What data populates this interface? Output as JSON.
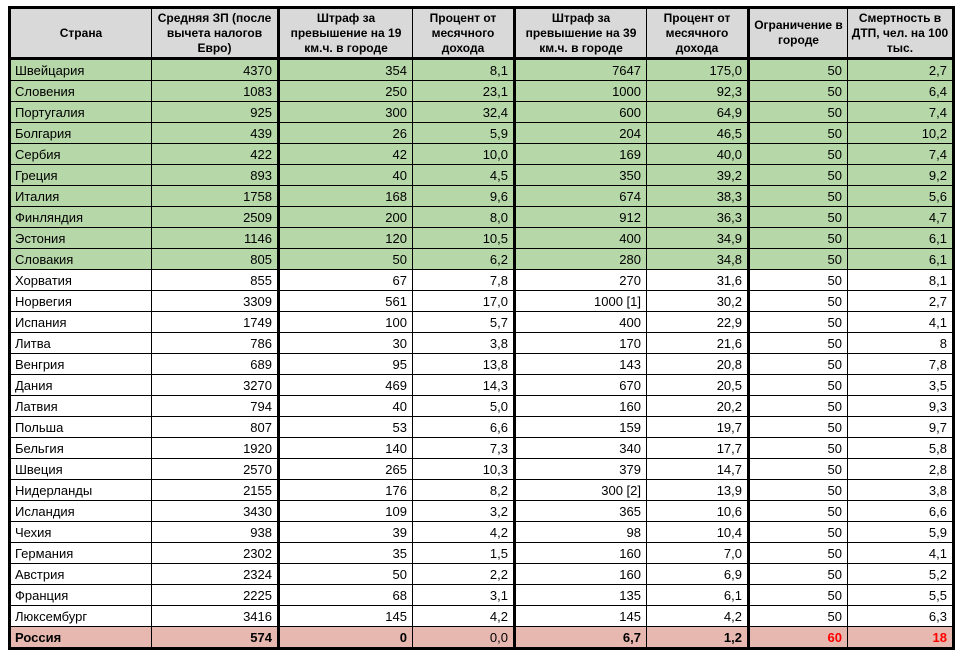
{
  "colors": {
    "header_gray": "#d9d9d9",
    "band_green": "#b6d7a8",
    "band_red": "#e6b8af",
    "alert_red": "#ff0000",
    "border_black": "#000000"
  },
  "chart_data": {
    "type": "table",
    "columns": [
      "Страна",
      "Средняя ЗП (после вычета налогов Евро)",
      "Штраф за превышение на 19 км.ч. в городе",
      "Процент от месячного дохода",
      "Штраф за превышение на 39 км.ч. в городе",
      "Процент от месячного дохода",
      "Ограничение в городе",
      "Смертность в ДТП, чел. на 100 тыс."
    ],
    "rows": [
      {
        "country": "Швейцария",
        "band": "green",
        "values": [
          "4370",
          "354",
          "8,1",
          "7647",
          "175,0",
          "50",
          "2,7"
        ]
      },
      {
        "country": "Словения",
        "band": "green",
        "values": [
          "1083",
          "250",
          "23,1",
          "1000",
          "92,3",
          "50",
          "6,4"
        ]
      },
      {
        "country": "Португалия",
        "band": "green",
        "values": [
          "925",
          "300",
          "32,4",
          "600",
          "64,9",
          "50",
          "7,4"
        ]
      },
      {
        "country": "Болгария",
        "band": "green",
        "values": [
          "439",
          "26",
          "5,9",
          "204",
          "46,5",
          "50",
          "10,2"
        ]
      },
      {
        "country": "Сербия",
        "band": "green",
        "values": [
          "422",
          "42",
          "10,0",
          "169",
          "40,0",
          "50",
          "7,4"
        ]
      },
      {
        "country": "Греция",
        "band": "green",
        "values": [
          "893",
          "40",
          "4,5",
          "350",
          "39,2",
          "50",
          "9,2"
        ]
      },
      {
        "country": "Италия",
        "band": "green",
        "values": [
          "1758",
          "168",
          "9,6",
          "674",
          "38,3",
          "50",
          "5,6"
        ]
      },
      {
        "country": "Финляндия",
        "band": "green",
        "values": [
          "2509",
          "200",
          "8,0",
          "912",
          "36,3",
          "50",
          "4,7"
        ]
      },
      {
        "country": "Эстония",
        "band": "green",
        "values": [
          "1146",
          "120",
          "10,5",
          "400",
          "34,9",
          "50",
          "6,1"
        ]
      },
      {
        "country": "Словакия",
        "band": "green",
        "values": [
          "805",
          "50",
          "6,2",
          "280",
          "34,8",
          "50",
          "6,1"
        ]
      },
      {
        "country": "Хорватия",
        "band": "white",
        "values": [
          "855",
          "67",
          "7,8",
          "270",
          "31,6",
          "50",
          "8,1"
        ]
      },
      {
        "country": "Норвегия",
        "band": "white",
        "values": [
          "3309",
          "561",
          "17,0",
          "1000 [1]",
          "30,2",
          "50",
          "2,7"
        ]
      },
      {
        "country": "Испания",
        "band": "white",
        "values": [
          "1749",
          "100",
          "5,7",
          "400",
          "22,9",
          "50",
          "4,1"
        ]
      },
      {
        "country": "Литва",
        "band": "white",
        "values": [
          "786",
          "30",
          "3,8",
          "170",
          "21,6",
          "50",
          "8"
        ]
      },
      {
        "country": "Венгрия",
        "band": "white",
        "values": [
          "689",
          "95",
          "13,8",
          "143",
          "20,8",
          "50",
          "7,8"
        ]
      },
      {
        "country": "Дания",
        "band": "white",
        "values": [
          "3270",
          "469",
          "14,3",
          "670",
          "20,5",
          "50",
          "3,5"
        ]
      },
      {
        "country": "Латвия",
        "band": "white",
        "values": [
          "794",
          "40",
          "5,0",
          "160",
          "20,2",
          "50",
          "9,3"
        ]
      },
      {
        "country": "Польша",
        "band": "white",
        "values": [
          "807",
          "53",
          "6,6",
          "159",
          "19,7",
          "50",
          "9,7"
        ]
      },
      {
        "country": "Бельгия",
        "band": "white",
        "values": [
          "1920",
          "140",
          "7,3",
          "340",
          "17,7",
          "50",
          "5,8"
        ]
      },
      {
        "country": "Швеция",
        "band": "white",
        "values": [
          "2570",
          "265",
          "10,3",
          "379",
          "14,7",
          "50",
          "2,8"
        ]
      },
      {
        "country": "Нидерланды",
        "band": "white",
        "values": [
          "2155",
          "176",
          "8,2",
          "300 [2]",
          "13,9",
          "50",
          "3,8"
        ]
      },
      {
        "country": "Исландия",
        "band": "white",
        "values": [
          "3430",
          "109",
          "3,2",
          "365",
          "10,6",
          "50",
          "6,6"
        ]
      },
      {
        "country": "Чехия",
        "band": "white",
        "values": [
          "938",
          "39",
          "4,2",
          "98",
          "10,4",
          "50",
          "5,9"
        ]
      },
      {
        "country": "Германия",
        "band": "white",
        "values": [
          "2302",
          "35",
          "1,5",
          "160",
          "7,0",
          "50",
          "4,1"
        ]
      },
      {
        "country": "Австрия",
        "band": "white",
        "values": [
          "2324",
          "50",
          "2,2",
          "160",
          "6,9",
          "50",
          "5,2"
        ]
      },
      {
        "country": "Франция",
        "band": "white",
        "values": [
          "2225",
          "68",
          "3,1",
          "135",
          "6,1",
          "50",
          "5,5"
        ]
      },
      {
        "country": "Люксембург",
        "band": "white",
        "values": [
          "3416",
          "145",
          "4,2",
          "145",
          "4,2",
          "50",
          "6,3"
        ]
      },
      {
        "country": "Россия",
        "band": "red",
        "bold": true,
        "plain_indices": [
          2
        ],
        "red_text_indices": [
          5,
          6
        ],
        "values": [
          "574",
          "0",
          "0,0",
          "6,7",
          "1,2",
          "60",
          "18"
        ]
      }
    ]
  }
}
